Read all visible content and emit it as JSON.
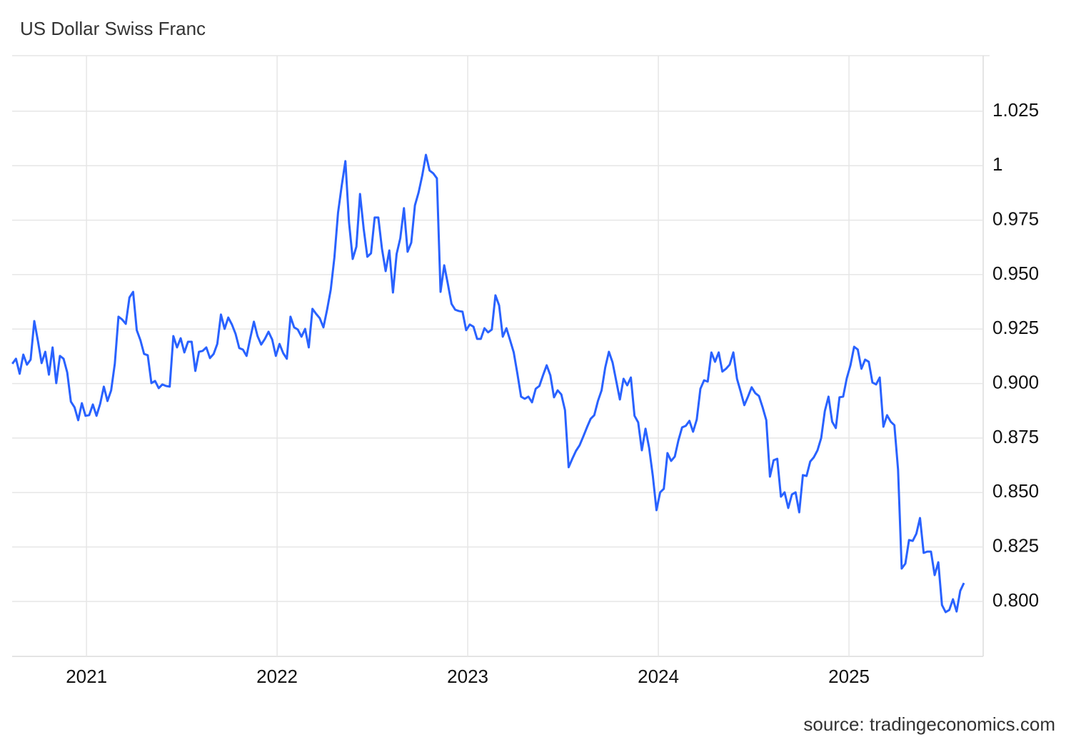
{
  "chart_data": {
    "type": "line",
    "title": "US Dollar Swiss Franc",
    "source": "source: tradingeconomics.com",
    "color": "#2962ff",
    "grid": true,
    "xlim": [
      2020.61,
      2025.704
    ],
    "xticks": [
      2021,
      2022,
      2023,
      2024,
      2025
    ],
    "ylim": [
      0.7748,
      1.0505
    ],
    "yticks": [
      {
        "value": 0.8,
        "label": "0.800"
      },
      0.825,
      {
        "value": 0.85,
        "label": "0.850"
      },
      0.875,
      {
        "value": 0.9,
        "label": "0.900"
      },
      0.925,
      {
        "value": 0.95,
        "label": "0.950"
      },
      0.975,
      1,
      1.025
    ],
    "x": [
      2020.611,
      2020.6302,
      2020.6494,
      2020.6686,
      2020.6878,
      2020.707,
      2020.7262,
      2020.7454,
      2020.7646,
      2020.7838,
      2020.803,
      2020.8222,
      2020.8414,
      2020.8606,
      2020.8798,
      2020.899,
      2020.9182,
      2020.9374,
      2020.9566,
      2020.9758,
      2020.995,
      2021.0142,
      2021.0334,
      2021.0526,
      2021.0718,
      2021.091,
      2021.1102,
      2021.1294,
      2021.1486,
      2021.1678,
      2021.187,
      2021.2062,
      2021.2254,
      2021.2446,
      2021.2638,
      2021.283,
      2021.3022,
      2021.3214,
      2021.3406,
      2021.3598,
      2021.379,
      2021.3982,
      2021.4174,
      2021.4366,
      2021.4558,
      2021.475,
      2021.4942,
      2021.5134,
      2021.5326,
      2021.5518,
      2021.571,
      2021.5902,
      2021.6094,
      2021.6286,
      2021.6478,
      2021.667,
      2021.6862,
      2021.7054,
      2021.7246,
      2021.7438,
      2021.763,
      2021.7822,
      2021.8014,
      2021.8206,
      2021.8398,
      2021.859,
      2021.8782,
      2021.8974,
      2021.9166,
      2021.9358,
      2021.955,
      2021.9742,
      2021.9934,
      2022.0126,
      2022.0318,
      2022.051,
      2022.0702,
      2022.0894,
      2022.1086,
      2022.1278,
      2022.147,
      2022.1662,
      2022.1854,
      2022.2046,
      2022.2238,
      2022.243,
      2022.2622,
      2022.2814,
      2022.3006,
      2022.3198,
      2022.339,
      2022.3582,
      2022.3774,
      2022.3966,
      2022.4158,
      2022.435,
      2022.4542,
      2022.4734,
      2022.4926,
      2022.5118,
      2022.531,
      2022.5502,
      2022.5694,
      2022.5886,
      2022.6078,
      2022.627,
      2022.6462,
      2022.6654,
      2022.6846,
      2022.7038,
      2022.723,
      2022.7422,
      2022.7614,
      2022.7806,
      2022.7998,
      2022.819,
      2022.8382,
      2022.8574,
      2022.8766,
      2022.8958,
      2022.915,
      2022.9342,
      2022.9534,
      2022.9726,
      2022.9918,
      2023.011,
      2023.0302,
      2023.0494,
      2023.0686,
      2023.0878,
      2023.107,
      2023.1262,
      2023.1454,
      2023.1646,
      2023.1838,
      2023.203,
      2023.2222,
      2023.2414,
      2023.2606,
      2023.2798,
      2023.299,
      2023.3182,
      2023.3374,
      2023.3566,
      2023.3758,
      2023.395,
      2023.4142,
      2023.4334,
      2023.4526,
      2023.4718,
      2023.491,
      2023.5102,
      2023.5294,
      2023.5486,
      2023.5678,
      2023.587,
      2023.6062,
      2023.6254,
      2023.6446,
      2023.6638,
      2023.683,
      2023.7022,
      2023.7214,
      2023.7406,
      2023.7598,
      2023.779,
      2023.7982,
      2023.8174,
      2023.8366,
      2023.8558,
      2023.875,
      2023.8942,
      2023.9134,
      2023.9326,
      2023.9518,
      2023.971,
      2023.9902,
      2024.0094,
      2024.0286,
      2024.0478,
      2024.067,
      2024.0862,
      2024.1054,
      2024.1246,
      2024.1438,
      2024.163,
      2024.1822,
      2024.2014,
      2024.2206,
      2024.2398,
      2024.259,
      2024.2782,
      2024.2974,
      2024.3166,
      2024.3358,
      2024.355,
      2024.3742,
      2024.3934,
      2024.4126,
      2024.4318,
      2024.451,
      2024.4702,
      2024.4894,
      2024.5086,
      2024.5278,
      2024.547,
      2024.5662,
      2024.5854,
      2024.6046,
      2024.6238,
      2024.643,
      2024.6622,
      2024.6814,
      2024.7006,
      2024.7198,
      2024.739,
      2024.7582,
      2024.7774,
      2024.7966,
      2024.8158,
      2024.835,
      2024.8542,
      2024.8734,
      2024.8926,
      2024.9118,
      2024.931,
      2024.9502,
      2024.9694,
      2024.9886,
      2025.0078,
      2025.027,
      2025.0462,
      2025.0654,
      2025.0846,
      2025.1038,
      2025.123,
      2025.1422,
      2025.1614,
      2025.1806,
      2025.1998,
      2025.219,
      2025.2382,
      2025.2574,
      2025.2766,
      2025.2958,
      2025.315,
      2025.3342,
      2025.3534,
      2025.3726,
      2025.3918,
      2025.411,
      2025.4302,
      2025.4494,
      2025.4686,
      2025.4878,
      2025.507,
      2025.5262,
      2025.5454,
      2025.5646,
      2025.5838,
      2025.603
    ],
    "values": [
      0.9091,
      0.9114,
      0.9045,
      0.9133,
      0.9087,
      0.911,
      0.9287,
      0.9195,
      0.9094,
      0.9146,
      0.9041,
      0.9166,
      0.9002,
      0.9127,
      0.9114,
      0.9051,
      0.8917,
      0.8891,
      0.8832,
      0.891,
      0.8852,
      0.8855,
      0.8904,
      0.8852,
      0.8907,
      0.8986,
      0.892,
      0.8969,
      0.9091,
      0.9307,
      0.9294,
      0.9274,
      0.9395,
      0.9421,
      0.9245,
      0.9199,
      0.9136,
      0.913,
      0.9002,
      0.9012,
      0.8979,
      0.8996,
      0.8989,
      0.8986,
      0.9218,
      0.9166,
      0.9208,
      0.9143,
      0.9192,
      0.9192,
      0.9058,
      0.9146,
      0.915,
      0.9166,
      0.9117,
      0.9136,
      0.9182,
      0.9317,
      0.9251,
      0.9303,
      0.9271,
      0.9228,
      0.9163,
      0.9156,
      0.9127,
      0.9208,
      0.9284,
      0.9218,
      0.9179,
      0.9205,
      0.9238,
      0.9202,
      0.9127,
      0.9182,
      0.914,
      0.9114,
      0.9307,
      0.9258,
      0.9248,
      0.9215,
      0.9251,
      0.9166,
      0.9343,
      0.932,
      0.93,
      0.9258,
      0.9339,
      0.9431,
      0.9579,
      0.9785,
      0.9909,
      1.0021,
      0.9739,
      0.9572,
      0.9628,
      0.987,
      0.971,
      0.9582,
      0.9598,
      0.9762,
      0.9762,
      0.9618,
      0.9516,
      0.9611,
      0.9418,
      0.9595,
      0.9667,
      0.9805,
      0.9605,
      0.9647,
      0.9818,
      0.9877,
      0.9955,
      1.005,
      0.9978,
      0.9965,
      0.9942,
      0.9421,
      0.9543,
      0.9457,
      0.9366,
      0.9339,
      0.9333,
      0.933,
      0.9245,
      0.9271,
      0.9261,
      0.9205,
      0.9205,
      0.9254,
      0.9235,
      0.9248,
      0.9405,
      0.9359,
      0.9215,
      0.9254,
      0.9199,
      0.9143,
      0.9045,
      0.894,
      0.893,
      0.894,
      0.8914,
      0.8976,
      0.8989,
      0.9038,
      0.9084,
      0.9038,
      0.8937,
      0.8969,
      0.895,
      0.8878,
      0.8616,
      0.8655,
      0.8691,
      0.8717,
      0.8757,
      0.8799,
      0.8838,
      0.8855,
      0.892,
      0.8969,
      0.9074,
      0.9146,
      0.9097,
      0.9012,
      0.8927,
      0.9022,
      0.8992,
      0.9028,
      0.8852,
      0.8822,
      0.8694,
      0.8793,
      0.8704,
      0.8576,
      0.8419,
      0.8501,
      0.8517,
      0.8681,
      0.8645,
      0.8665,
      0.874,
      0.8799,
      0.8806,
      0.8829,
      0.8779,
      0.8835,
      0.8976,
      0.9015,
      0.9009,
      0.9143,
      0.91,
      0.9143,
      0.9055,
      0.9068,
      0.9087,
      0.9143,
      0.9022,
      0.8963,
      0.8901,
      0.894,
      0.8983,
      0.8956,
      0.8943,
      0.8891,
      0.8832,
      0.8573,
      0.8648,
      0.8655,
      0.8481,
      0.8501,
      0.8429,
      0.8491,
      0.8501,
      0.8409,
      0.858,
      0.8576,
      0.8642,
      0.8662,
      0.8694,
      0.875,
      0.8874,
      0.894,
      0.8825,
      0.8796,
      0.8937,
      0.894,
      0.9025,
      0.9084,
      0.9169,
      0.9156,
      0.9068,
      0.911,
      0.91,
      0.9005,
      0.8996,
      0.9028,
      0.8802,
      0.8855,
      0.8825,
      0.8809,
      0.8606,
      0.8151,
      0.8174,
      0.8282,
      0.8278,
      0.8311,
      0.8383,
      0.8223,
      0.8229,
      0.8229,
      0.8121,
      0.818,
      0.7984,
      0.7951,
      0.7961,
      0.801,
      0.7954,
      0.8049,
      0.8085
    ]
  }
}
